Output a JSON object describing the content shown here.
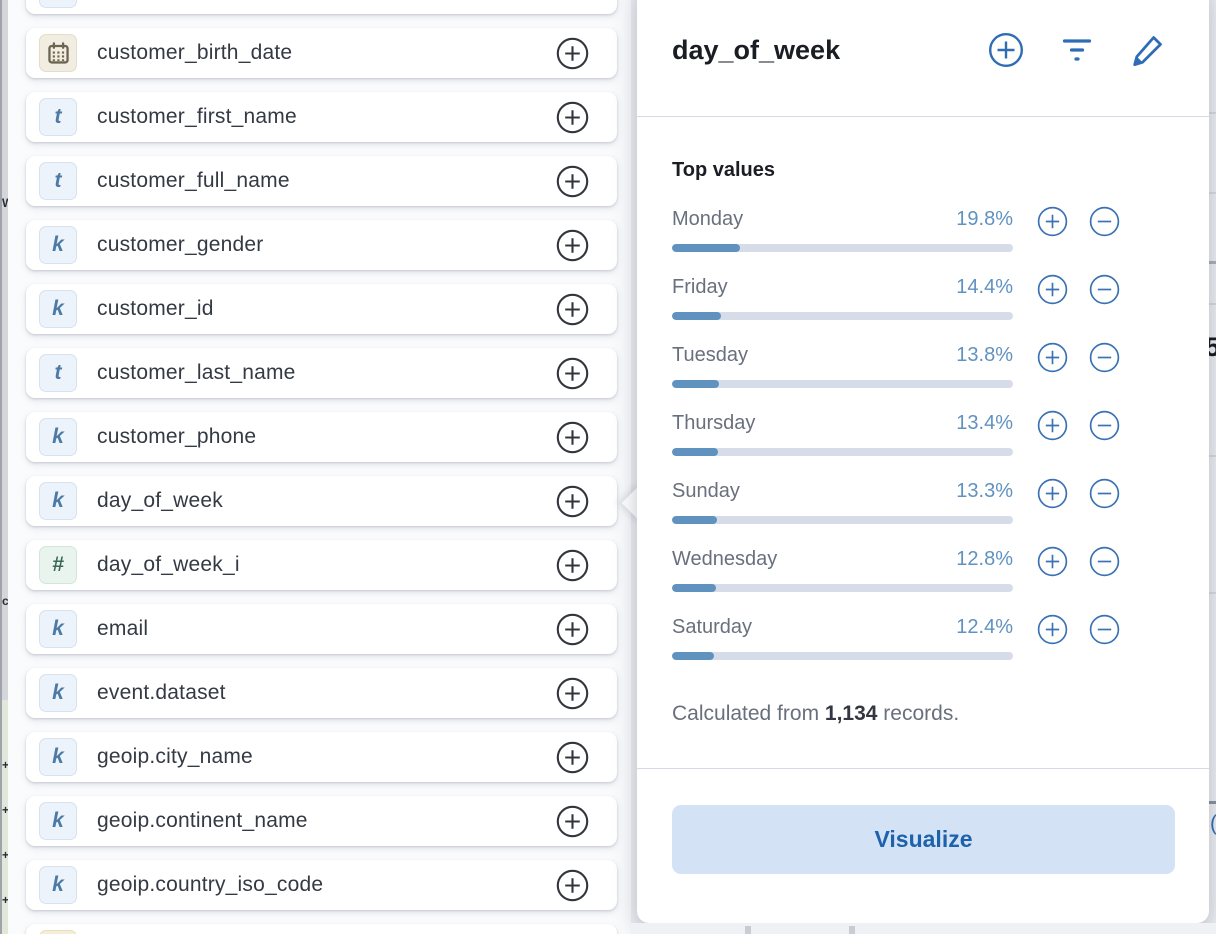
{
  "field_list": {
    "items": [
      {
        "label": "customer_birth_date",
        "type": "date"
      },
      {
        "label": "customer_first_name",
        "type": "text"
      },
      {
        "label": "customer_full_name",
        "type": "text"
      },
      {
        "label": "customer_gender",
        "type": "keyword"
      },
      {
        "label": "customer_id",
        "type": "keyword"
      },
      {
        "label": "customer_last_name",
        "type": "text"
      },
      {
        "label": "customer_phone",
        "type": "keyword"
      },
      {
        "label": "day_of_week",
        "type": "keyword",
        "selected": true
      },
      {
        "label": "day_of_week_i",
        "type": "number"
      },
      {
        "label": "email",
        "type": "keyword"
      },
      {
        "label": "event.dataset",
        "type": "keyword"
      },
      {
        "label": "geoip.city_name",
        "type": "keyword"
      },
      {
        "label": "geoip.continent_name",
        "type": "keyword"
      },
      {
        "label": "geoip.country_iso_code",
        "type": "keyword"
      }
    ],
    "token_glyphs": {
      "text": "t",
      "keyword": "k",
      "number": "#"
    }
  },
  "popover": {
    "title": "day_of_week",
    "header_actions": [
      {
        "icon": "plus-circle-icon"
      },
      {
        "icon": "filter-icon"
      },
      {
        "icon": "edit-pencil-icon"
      }
    ],
    "top_values": {
      "heading": "Top values",
      "rows": [
        {
          "label": "Monday",
          "percent": 19.8,
          "display": "19.8%"
        },
        {
          "label": "Friday",
          "percent": 14.4,
          "display": "14.4%"
        },
        {
          "label": "Tuesday",
          "percent": 13.8,
          "display": "13.8%"
        },
        {
          "label": "Thursday",
          "percent": 13.4,
          "display": "13.4%"
        },
        {
          "label": "Sunday",
          "percent": 13.3,
          "display": "13.3%"
        },
        {
          "label": "Wednesday",
          "percent": 12.8,
          "display": "12.8%"
        },
        {
          "label": "Saturday",
          "percent": 12.4,
          "display": "12.4%"
        }
      ]
    },
    "summary": {
      "prefix": "Calculated from ",
      "count": "1,134",
      "suffix": " records."
    },
    "visualize_button": "Visualize"
  },
  "background_fragments": {
    "right_digit": "5",
    "right_paren": "("
  },
  "colors": {
    "accent_blue": "#2e6db5",
    "bar_fill": "#6092c0",
    "bar_track": "#d6dde8",
    "percent_text": "#6092c0",
    "label_gray": "#69707d",
    "visualize_bg": "#d3e3f5",
    "visualize_text": "#1d62ab",
    "keyword_token": "#4d7aa5",
    "number_token": "#3a6a54",
    "date_token": "#6d6552"
  }
}
